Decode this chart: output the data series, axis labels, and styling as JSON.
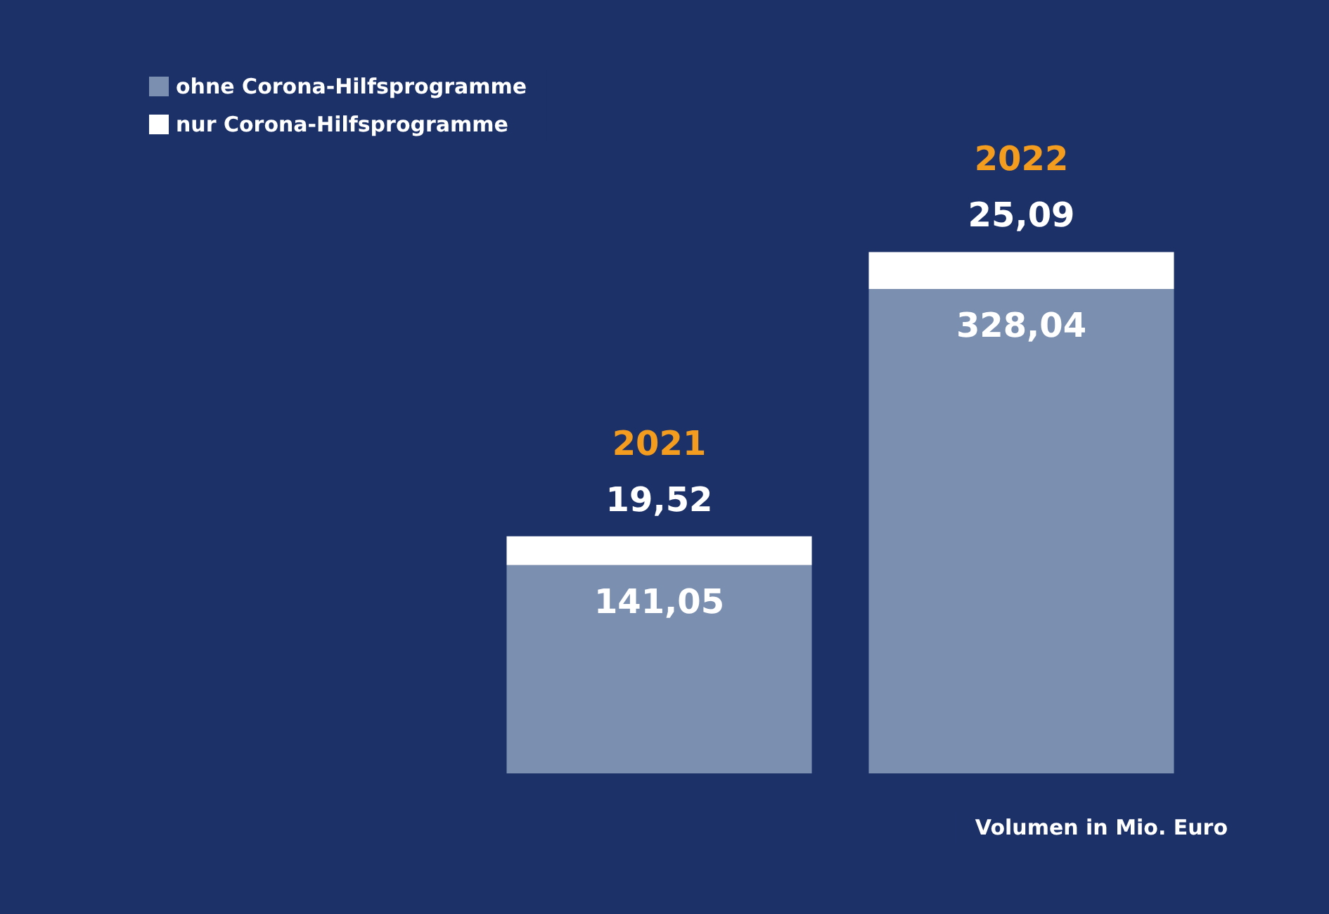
{
  "chart_data": {
    "type": "bar",
    "stacked": true,
    "xlabel": "Volumen in Mio. Euro",
    "categories": [
      "2021",
      "2022"
    ],
    "series": [
      {
        "name": "ohne Corona-Hilfsprogramme",
        "color": "#7b8fb0",
        "values": [
          141.05,
          328.04
        ],
        "value_labels": [
          "141,05",
          "328,04"
        ]
      },
      {
        "name": "nur Corona-Hilfsprogramme",
        "color": "#ffffff",
        "values": [
          19.52,
          25.09
        ],
        "value_labels": [
          "19,52",
          "25,09"
        ]
      }
    ],
    "legend": "top left"
  }
}
